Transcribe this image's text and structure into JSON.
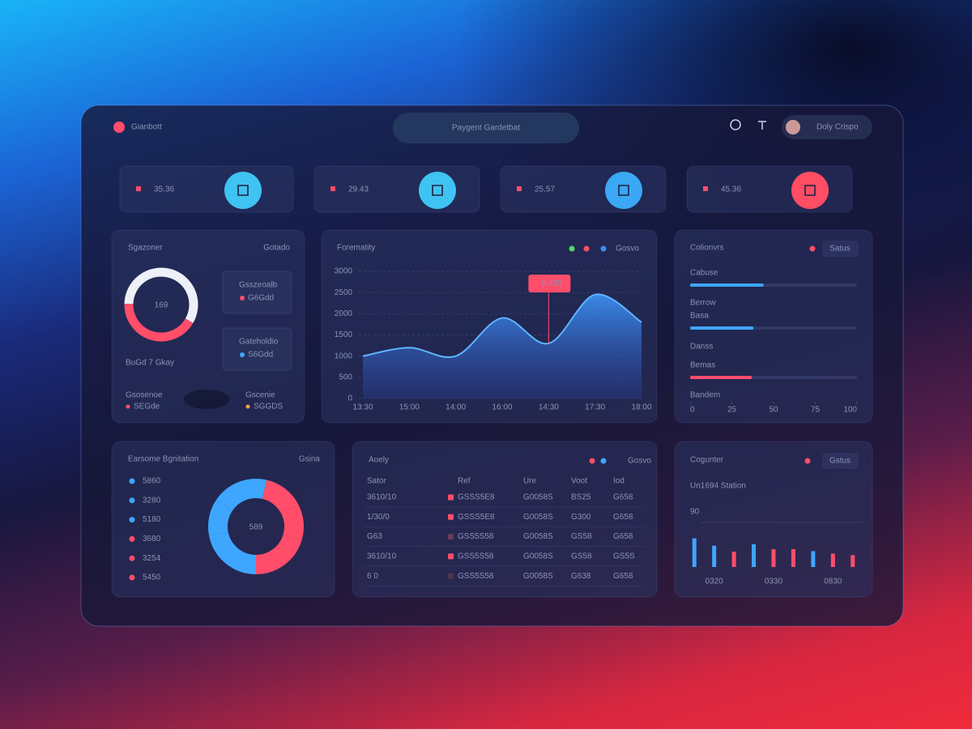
{
  "header": {
    "brand": "Gianbott",
    "search": "Paygent Gardetbat",
    "user": "Doly Crispo"
  },
  "kpis": [
    {
      "value": 35.36,
      "color": "#3fc3f2"
    },
    {
      "value": 29.43,
      "color": "#3fc3f2"
    },
    {
      "value": 25.57,
      "color": "#3aa8f5"
    },
    {
      "value": 45.36,
      "color": "#ff4d63"
    }
  ],
  "chart_data": [
    {
      "type": "pie",
      "title": "Sgazoner",
      "link": "Gotado",
      "center_label": 169,
      "values": [
        42,
        58
      ],
      "colors": [
        "#ff4d6a",
        "#eef0f7"
      ],
      "side_items": [
        {
          "label": "Gsszeoalb",
          "value": "G6Gdd",
          "color": "#ff4d6a"
        },
        {
          "label": "Gateholdio",
          "value": "S6Gdd",
          "color": "#3ea6ff"
        }
      ],
      "caption": "BuGd 7 Gkay",
      "footer_items": [
        {
          "label": "Gsosenoe",
          "value": "SEGde",
          "color": "#ff4d6a"
        },
        {
          "label": "Gscenie",
          "value": "SGGDS",
          "color": "#ff9f43"
        }
      ]
    },
    {
      "type": "area",
      "title": "Forematity",
      "categories": [
        "13:30",
        "15:00",
        "14:00",
        "16:00",
        "14:30",
        "17:30",
        "18:00"
      ],
      "series": [
        {
          "name": "Gosvo",
          "color": "#3b8ff0",
          "values": [
            1000,
            1200,
            1000,
            1900,
            1300,
            2450,
            1800
          ]
        }
      ],
      "legend_dots": [
        "#4cd964",
        "#ff4d6a"
      ],
      "ylim": [
        0,
        3000
      ],
      "yticks": [
        0,
        500,
        1000,
        1500,
        2000,
        2500,
        3000
      ],
      "grid": true,
      "annotation": {
        "text": "8,620",
        "category": "14:30"
      }
    },
    {
      "type": "progress",
      "title": "Colionvrs",
      "button": "Satus",
      "items": [
        {
          "label": "Cabuse",
          "value": 44,
          "color": "#3ea6ff"
        },
        {
          "label": "Basa",
          "value": 38,
          "color": "#3ea6ff"
        },
        {
          "label": "Bemas",
          "value": 37,
          "color": "#ff4d6a"
        }
      ],
      "notes": [
        "Berrow",
        "Danss",
        "Bandem"
      ],
      "xlim": [
        0,
        100
      ],
      "xticks": [
        0,
        25,
        50,
        75,
        100
      ]
    },
    {
      "type": "pie",
      "title": "Earsome Bgnitation",
      "link": "Gsina",
      "center_label": 589,
      "values": [
        5860,
        3280,
        5180,
        3680,
        3254,
        5450
      ],
      "colors": [
        "#3ea6ff",
        "#3ea6ff",
        "#3ea6ff",
        "#ff4d6a",
        "#ff4d6a",
        "#ff4d6a"
      ]
    },
    {
      "type": "bar",
      "title": "Cogunter",
      "subtitle": "Un1694 Station",
      "button": "Gstus",
      "categories": [
        null,
        "0320",
        null,
        null,
        "0330",
        null,
        null,
        "0830",
        null
      ],
      "values": [
        58,
        43,
        31,
        46,
        36,
        36,
        32,
        27,
        24
      ],
      "colors": [
        "#3ea6ff",
        "#3ea6ff",
        "#ff4d6a",
        "#3ea6ff",
        "#ff4d6a",
        "#ff4d6a",
        "#3ea6ff",
        "#ff4d6a",
        "#ff4d6a"
      ],
      "ylim": [
        0,
        90
      ],
      "yticks": [
        90
      ],
      "grid": true
    }
  ],
  "table": {
    "title": "Aoely",
    "legend": "Gosvo",
    "header": [
      "Sator",
      "Ref",
      "Ure",
      "Voot",
      "Iod"
    ],
    "rows": [
      [
        "3610/10",
        "GSSS5E8",
        "G0058S",
        "BS25",
        "G658"
      ],
      [
        "1/30/0",
        "GSSS5E8",
        "G0058S",
        "G300",
        "G658"
      ],
      [
        "G63",
        "GSS5S58",
        "G0058S",
        "GS58",
        "G658"
      ],
      [
        "3610/10",
        "GSS5S58",
        "G0058S",
        "GS58",
        "GS5S"
      ],
      [
        "6 0",
        "GSS5S58",
        "G0058S",
        "G638",
        "G658"
      ]
    ],
    "marks": [
      "#ff4d6a",
      "#ff4d6a",
      "#6b3a55",
      "#ff4d6a",
      "#4a3552"
    ]
  }
}
